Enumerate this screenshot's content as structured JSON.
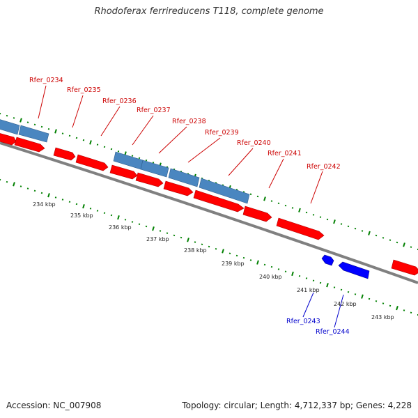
{
  "title": "Rhodoferax ferrireducens T118, complete genome",
  "footer": {
    "accession": "Accession: NC_007908",
    "info": "Topology: circular; Length: 4,712,337 bp; Genes: 4,228"
  },
  "colors": {
    "forward_gene": "#ff0000",
    "reverse_gene": "#0000ff",
    "other_gene": "#4a86c0",
    "tick": "#008000",
    "backbone": "#808080",
    "forward_label": "#cc0000",
    "reverse_label": "#0000cc"
  },
  "scale_labels": [
    "234 kbp",
    "235 kbp",
    "236 kbp",
    "237 kbp",
    "238 kbp",
    "239 kbp",
    "240 kbp",
    "241 kbp",
    "242 kbp",
    "243 kbp"
  ],
  "gene_labels_forward": [
    "Rfer_0234",
    "Rfer_0235",
    "Rfer_0236",
    "Rfer_0237",
    "Rfer_0238",
    "Rfer_0239",
    "Rfer_0240",
    "Rfer_0241",
    "Rfer_0242"
  ],
  "gene_labels_reverse": [
    "Rfer_0243",
    "Rfer_0244"
  ]
}
